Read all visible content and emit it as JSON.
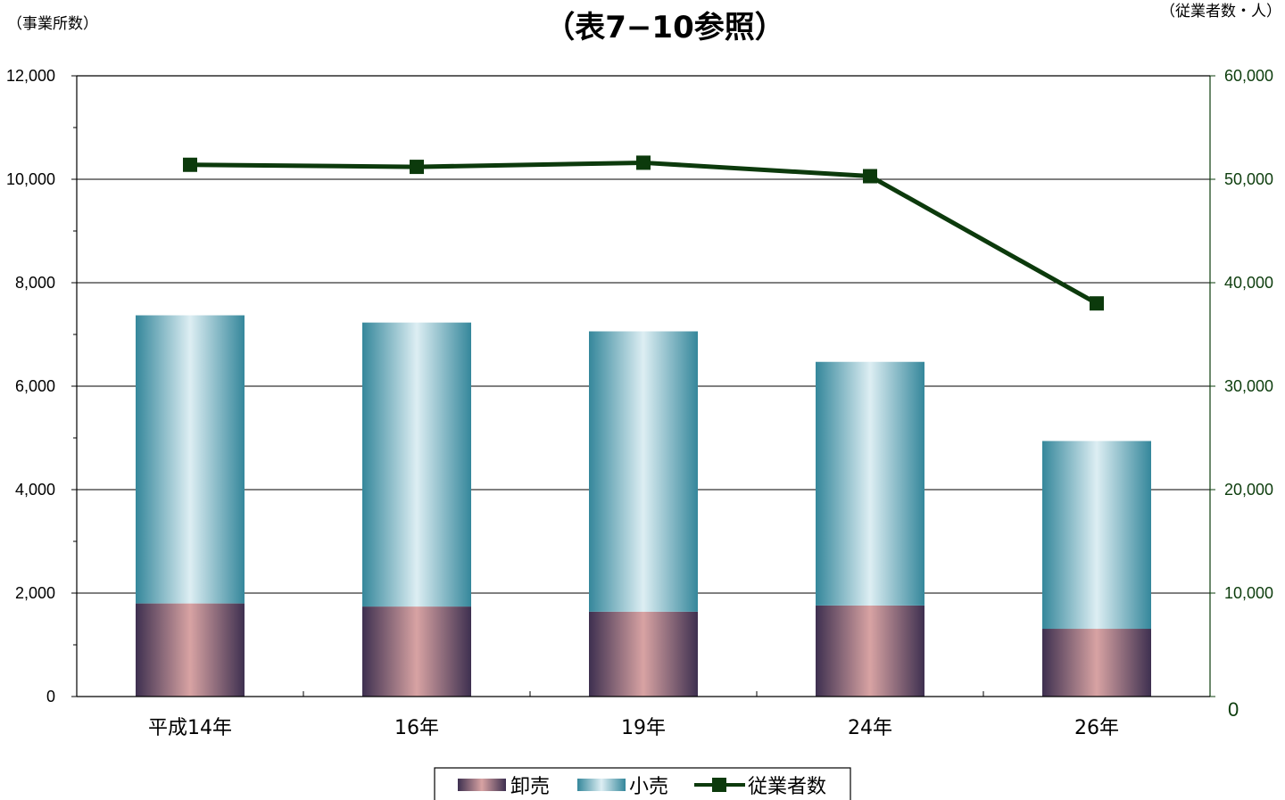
{
  "chart_data": {
    "type": "bar",
    "title": "（表7−10参照）",
    "y_left_unit": "（事業所数）",
    "y_right_unit": "（従業者数・人）",
    "categories": [
      "平成14年",
      "16年",
      "19年",
      "24年",
      "26年"
    ],
    "ylim_left": [
      0,
      12000
    ],
    "ylim_right": [
      0,
      60000
    ],
    "yticks_left": [
      "0",
      "2,000",
      "4,000",
      "6,000",
      "8,000",
      "10,000",
      "12,000"
    ],
    "yticks_right": [
      "0",
      "10,000",
      "20,000",
      "30,000",
      "40,000",
      "50,000",
      "60,000"
    ],
    "stacked": true,
    "series": [
      {
        "name": "卸売",
        "type": "bar",
        "axis": "left",
        "values": [
          1800,
          1740,
          1640,
          1760,
          1310
        ]
      },
      {
        "name": "小売",
        "type": "bar",
        "axis": "left",
        "values": [
          5570,
          5490,
          5420,
          4710,
          3630
        ]
      },
      {
        "name": "従業者数",
        "type": "line",
        "axis": "right",
        "values": [
          51400,
          51200,
          51600,
          50300,
          38000
        ]
      }
    ],
    "grid": true,
    "legend_position": "bottom",
    "colors": {
      "wholesale": "#d8a3a3",
      "wholesale_edge": "#3e3050",
      "retail": "#ddeef3",
      "retail_edge": "#35879b",
      "line": "#0c3a0c",
      "marker": "#0c3a0c"
    }
  }
}
